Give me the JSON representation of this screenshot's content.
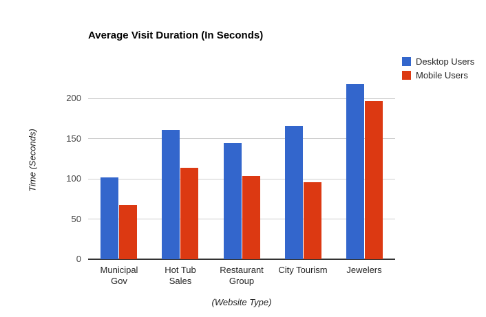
{
  "chart_data": {
    "type": "bar",
    "title": "Average Visit Duration (In Seconds)",
    "categories": [
      "Municipal Gov",
      "Hot Tub Sales",
      "Restaurant Group",
      "City Tourism",
      "Jewelers"
    ],
    "category_label_lines": [
      [
        "Municipal",
        "Gov"
      ],
      [
        "Hot Tub",
        "Sales"
      ],
      [
        "Restaurant",
        "Group"
      ],
      [
        "City Tourism"
      ],
      [
        "Jewelers"
      ]
    ],
    "series": [
      {
        "name": "Desktop Users",
        "color": "#3366CC",
        "values": [
          102,
          161,
          145,
          166,
          218
        ]
      },
      {
        "name": "Mobile Users",
        "color": "#DC3912",
        "values": [
          68,
          114,
          104,
          96,
          197
        ]
      }
    ],
    "xlabel": "(Website Type)",
    "ylabel": "Time (Seconds)",
    "yticks": [
      0,
      50,
      100,
      150,
      200
    ],
    "ylim": [
      0,
      250
    ],
    "grid": true,
    "legend_position": "right"
  },
  "colors": {
    "series_desktop": "#3366CC",
    "series_mobile": "#DC3912",
    "gridline": "#CCCCCC",
    "axis_line": "#333333",
    "tick_label": "#444444",
    "label_text": "#222222",
    "title_text": "#000000",
    "background": "#FFFFFF"
  }
}
